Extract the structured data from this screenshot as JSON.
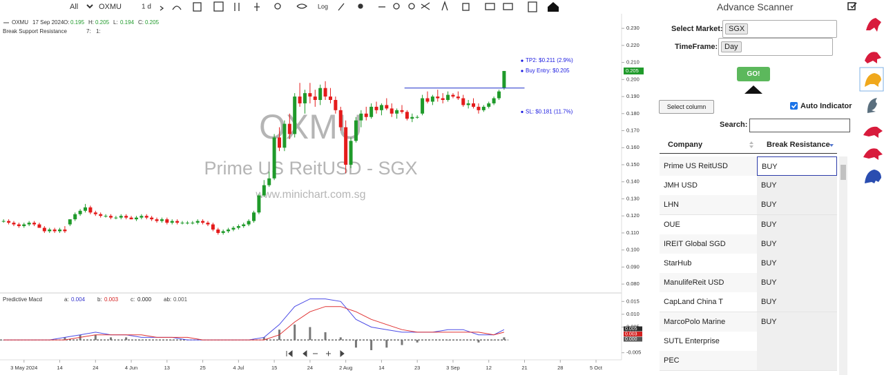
{
  "toolbar": {
    "range": "All",
    "symbol": "OXMU",
    "interval": "1 d",
    "scale": "Log"
  },
  "chart_data": [
    {
      "type": "candlestick",
      "symbol": "OXMU",
      "date": "17 Sep 2024",
      "ohlc_labels": [
        "O:",
        "H:",
        "L:",
        "C:"
      ],
      "indicator": "Break Support Resistance",
      "indicator_params": [
        "7:",
        "1:"
      ],
      "watermark": [
        "OXMU",
        "Prime US ReitUSD - SGX",
        "www.minichart.com.sg"
      ],
      "up_color": "#1f9a2a",
      "down_color": "#e41b1b",
      "xlim": [
        -0.7,
        121
      ],
      "ylim": [
        0.076,
        0.2345
      ],
      "ohlc": [
        [
          0.117,
          0.118,
          0.116,
          0.117
        ],
        [
          0.117,
          0.118,
          0.115,
          0.116
        ],
        [
          0.116,
          0.117,
          0.114,
          0.115
        ],
        [
          0.115,
          0.116,
          0.113,
          0.114
        ],
        [
          0.114,
          0.116,
          0.113,
          0.115
        ],
        [
          0.115,
          0.117,
          0.114,
          0.116
        ],
        [
          0.116,
          0.117,
          0.114,
          0.115
        ],
        [
          0.115,
          0.116,
          0.113,
          0.113
        ],
        [
          0.113,
          0.114,
          0.11,
          0.111
        ],
        [
          0.111,
          0.113,
          0.11,
          0.112
        ],
        [
          0.112,
          0.113,
          0.11,
          0.111
        ],
        [
          0.111,
          0.113,
          0.11,
          0.112
        ],
        [
          0.112,
          0.114,
          0.11,
          0.111
        ],
        [
          0.115,
          0.118,
          0.114,
          0.118
        ],
        [
          0.118,
          0.122,
          0.117,
          0.121
        ],
        [
          0.121,
          0.124,
          0.12,
          0.123
        ],
        [
          0.123,
          0.127,
          0.122,
          0.125
        ],
        [
          0.125,
          0.126,
          0.121,
          0.122
        ],
        [
          0.122,
          0.123,
          0.12,
          0.121
        ],
        [
          0.121,
          0.122,
          0.119,
          0.12
        ],
        [
          0.12,
          0.121,
          0.119,
          0.12
        ],
        [
          0.12,
          0.121,
          0.118,
          0.119
        ],
        [
          0.119,
          0.12,
          0.118,
          0.119
        ],
        [
          0.119,
          0.121,
          0.118,
          0.12
        ],
        [
          0.12,
          0.121,
          0.118,
          0.119
        ],
        [
          0.119,
          0.12,
          0.118,
          0.118
        ],
        [
          0.118,
          0.12,
          0.117,
          0.119
        ],
        [
          0.119,
          0.121,
          0.118,
          0.12
        ],
        [
          0.12,
          0.121,
          0.118,
          0.119
        ],
        [
          0.119,
          0.12,
          0.117,
          0.118
        ],
        [
          0.118,
          0.119,
          0.116,
          0.117
        ],
        [
          0.117,
          0.119,
          0.116,
          0.118
        ],
        [
          0.118,
          0.119,
          0.115,
          0.116
        ],
        [
          0.116,
          0.118,
          0.115,
          0.117
        ],
        [
          0.117,
          0.118,
          0.115,
          0.116
        ],
        [
          0.116,
          0.117,
          0.115,
          0.116
        ],
        [
          0.116,
          0.117,
          0.115,
          0.116
        ],
        [
          0.116,
          0.117,
          0.115,
          0.116
        ],
        [
          0.116,
          0.118,
          0.115,
          0.117
        ],
        [
          0.117,
          0.118,
          0.115,
          0.116
        ],
        [
          0.116,
          0.117,
          0.114,
          0.115
        ],
        [
          0.115,
          0.116,
          0.111,
          0.112
        ],
        [
          0.112,
          0.113,
          0.109,
          0.11
        ],
        [
          0.11,
          0.112,
          0.109,
          0.111
        ],
        [
          0.111,
          0.113,
          0.11,
          0.112
        ],
        [
          0.112,
          0.114,
          0.111,
          0.113
        ],
        [
          0.113,
          0.115,
          0.112,
          0.114
        ],
        [
          0.114,
          0.116,
          0.113,
          0.115
        ],
        [
          0.115,
          0.118,
          0.114,
          0.117
        ],
        [
          0.117,
          0.123,
          0.116,
          0.122
        ],
        [
          0.122,
          0.133,
          0.121,
          0.132
        ],
        [
          0.132,
          0.141,
          0.131,
          0.138
        ],
        [
          0.138,
          0.146,
          0.137,
          0.142
        ],
        [
          0.142,
          0.168,
          0.141,
          0.166
        ],
        [
          0.166,
          0.172,
          0.158,
          0.16
        ],
        [
          0.16,
          0.176,
          0.158,
          0.174
        ],
        [
          0.174,
          0.18,
          0.165,
          0.168
        ],
        [
          0.168,
          0.192,
          0.166,
          0.19
        ],
        [
          0.19,
          0.198,
          0.184,
          0.186
        ],
        [
          0.186,
          0.194,
          0.18,
          0.192
        ],
        [
          0.192,
          0.198,
          0.186,
          0.19
        ],
        [
          0.19,
          0.194,
          0.184,
          0.188
        ],
        [
          0.188,
          0.197,
          0.185,
          0.195
        ],
        [
          0.195,
          0.199,
          0.188,
          0.19
        ],
        [
          0.19,
          0.195,
          0.186,
          0.188
        ],
        [
          0.188,
          0.19,
          0.18,
          0.182
        ],
        [
          0.182,
          0.184,
          0.17,
          0.172
        ],
        [
          0.172,
          0.176,
          0.145,
          0.15
        ],
        [
          0.15,
          0.166,
          0.148,
          0.164
        ],
        [
          0.164,
          0.178,
          0.163,
          0.176
        ],
        [
          0.176,
          0.182,
          0.172,
          0.18
        ],
        [
          0.18,
          0.184,
          0.176,
          0.178
        ],
        [
          0.178,
          0.186,
          0.177,
          0.184
        ],
        [
          0.184,
          0.187,
          0.18,
          0.182
        ],
        [
          0.182,
          0.186,
          0.179,
          0.185
        ],
        [
          0.185,
          0.189,
          0.182,
          0.183
        ],
        [
          0.183,
          0.186,
          0.178,
          0.18
        ],
        [
          0.18,
          0.183,
          0.177,
          0.182
        ],
        [
          0.182,
          0.185,
          0.18,
          0.181
        ],
        [
          0.181,
          0.182,
          0.176,
          0.177
        ],
        [
          0.177,
          0.18,
          0.175,
          0.178
        ],
        [
          0.178,
          0.179,
          0.177,
          0.178
        ],
        [
          0.18,
          0.191,
          0.179,
          0.189
        ],
        [
          0.189,
          0.193,
          0.186,
          0.187
        ],
        [
          0.187,
          0.191,
          0.185,
          0.19
        ],
        [
          0.19,
          0.194,
          0.187,
          0.189
        ],
        [
          0.189,
          0.192,
          0.186,
          0.188
        ],
        [
          0.188,
          0.193,
          0.187,
          0.191
        ],
        [
          0.191,
          0.192,
          0.189,
          0.19
        ],
        [
          0.19,
          0.193,
          0.188,
          0.189
        ],
        [
          0.189,
          0.191,
          0.184,
          0.185
        ],
        [
          0.185,
          0.188,
          0.183,
          0.186
        ],
        [
          0.186,
          0.189,
          0.183,
          0.184
        ],
        [
          0.184,
          0.186,
          0.18,
          0.182
        ],
        [
          0.182,
          0.185,
          0.181,
          0.184
        ],
        [
          0.184,
          0.187,
          0.183,
          0.186
        ],
        [
          0.186,
          0.19,
          0.185,
          0.189
        ],
        [
          0.189,
          0.194,
          0.188,
          0.193
        ],
        [
          0.195,
          0.205,
          0.194,
          0.205
        ]
      ],
      "resistance": {
        "value": 0.195,
        "x": [
          78.5,
          102
        ],
        "color": "#3545d0"
      },
      "annotations": [
        {
          "label": "TP2: $0.211 (2.9%)",
          "value": 0.211
        },
        {
          "label": "Buy Entry: $0.205",
          "value": 0.205
        },
        {
          "label": "SL: $0.181 (11.7%)",
          "value": 0.181
        }
      ],
      "annotation_color": "#1a1ae0",
      "yticks": [
        {
          "value": 0.23,
          "label": "0.230"
        },
        {
          "value": 0.22,
          "label": "0.220"
        },
        {
          "value": 0.21,
          "label": "0.210"
        },
        {
          "value": 0.2,
          "label": "0.200"
        },
        {
          "value": 0.19,
          "label": "0.190"
        },
        {
          "value": 0.18,
          "label": "0.180"
        },
        {
          "value": 0.17,
          "label": "0.170"
        },
        {
          "value": 0.16,
          "label": "0.160"
        },
        {
          "value": 0.15,
          "label": "0.150"
        },
        {
          "value": 0.14,
          "label": "0.140"
        },
        {
          "value": 0.13,
          "label": "0.130"
        },
        {
          "value": 0.12,
          "label": "0.120"
        },
        {
          "value": 0.11,
          "label": "0.110"
        },
        {
          "value": 0.1,
          "label": "0.100"
        },
        {
          "value": 0.09,
          "label": "0.090"
        },
        {
          "value": 0.08,
          "label": "0.080"
        }
      ],
      "xticks": [
        {
          "value": 4,
          "label": "3 May 2024"
        },
        {
          "value": 11,
          "label": "14"
        },
        {
          "value": 18,
          "label": "24"
        },
        {
          "value": 25,
          "label": "4 Jun"
        },
        {
          "value": 32,
          "label": "13"
        },
        {
          "value": 39,
          "label": "25"
        },
        {
          "value": 46,
          "label": "4 Jul"
        },
        {
          "value": 53,
          "label": "15"
        },
        {
          "value": 60,
          "label": "24"
        },
        {
          "value": 67,
          "label": "2 Aug"
        },
        {
          "value": 74,
          "label": "14"
        },
        {
          "value": 81,
          "label": "23"
        },
        {
          "value": 88,
          "label": "3 Sep"
        },
        {
          "value": 95,
          "label": "12"
        },
        {
          "value": 102,
          "label": "21"
        },
        {
          "value": 109,
          "label": "28"
        },
        {
          "value": 116,
          "label": "5 Oct"
        }
      ]
    },
    {
      "type": "macd",
      "title": "Predictive Macd",
      "legend": [
        {
          "key": "a:",
          "value": "0.004",
          "color": "#3333cc"
        },
        {
          "key": "b:",
          "value": "0.003",
          "color": "#d42020"
        },
        {
          "key": "c:",
          "value": "0.000",
          "color": "#222222"
        },
        {
          "key": "ab:",
          "value": "0.001",
          "color": "#555555"
        }
      ],
      "xlim": [
        -0.7,
        121
      ],
      "ylim": [
        -0.0075,
        0.0175
      ],
      "x": [
        0,
        3,
        6,
        9,
        12,
        15,
        18,
        21,
        24,
        27,
        30,
        33,
        36,
        39,
        42,
        45,
        48,
        51,
        54,
        57,
        60,
        63,
        66,
        69,
        72,
        75,
        78,
        81,
        84,
        87,
        90,
        93,
        96,
        98
      ],
      "series": [
        {
          "color": "#4a4ae6",
          "values": [
            0,
            0,
            0,
            0,
            0.001,
            0.002,
            0.003,
            0.002,
            0.002,
            0.001,
            0.001,
            0.001,
            0,
            0,
            0,
            0,
            0,
            0.001,
            0.006,
            0.013,
            0.016,
            0.016,
            0.015,
            0.008,
            0.005,
            0.004,
            0.003,
            0.003,
            0.003,
            0.004,
            0.004,
            0.002,
            0.002,
            0.004
          ]
        },
        {
          "color": "#e03030",
          "values": [
            0,
            0,
            0,
            0,
            0,
            0.001,
            0.002,
            0.002,
            0.002,
            0.002,
            0.001,
            0.001,
            0.001,
            0,
            0,
            0,
            0,
            0,
            0.002,
            0.007,
            0.011,
            0.013,
            0.013,
            0.011,
            0.008,
            0.006,
            0.004,
            0.003,
            0.003,
            0.003,
            0.003,
            0.003,
            0.002,
            0.003
          ]
        }
      ],
      "histogram": {
        "color": "#777777",
        "values": [
          0,
          0,
          0,
          0,
          0.001,
          0.002,
          0.002,
          0.001,
          0.001,
          0,
          0,
          0,
          0,
          0,
          0,
          0,
          0,
          0.001,
          0.004,
          0.006,
          0.005,
          0.003,
          0.001,
          -0.003,
          -0.004,
          -0.003,
          -0.002,
          -0.001,
          0,
          0,
          0,
          -0.001,
          0,
          0.001
        ]
      },
      "end_labels": [
        {
          "label": "0.005",
          "color": "#2b2b2b"
        },
        {
          "label": "0.003",
          "color": "#d42020"
        },
        {
          "label": "0.000",
          "color": "#555555"
        }
      ],
      "yticks": [
        0.015,
        {
          "value": 0.01,
          "label": "0.010"
        },
        0.005,
        -0.005
      ]
    }
  ],
  "scanner": {
    "title": "Advance Scanner",
    "market_label": "Select Market:",
    "market": "SGX",
    "timeframe_label": "TimeFrame:",
    "timeframe": "Day",
    "go": "GO!",
    "select_column": "Select column",
    "auto_indicator": "Auto Indicator",
    "search_label": "Search:",
    "table": {
      "columns": [
        "Company",
        "Break Resistance"
      ],
      "rows": [
        [
          "Prime US ReitUSD",
          "BUY"
        ],
        [
          "JMH USD",
          "BUY"
        ],
        [
          "LHN",
          "BUY"
        ],
        [
          "OUE",
          "BUY"
        ],
        [
          "IREIT Global SGD",
          "BUY"
        ],
        [
          "StarHub",
          "BUY"
        ],
        [
          "ManulifeReit USD",
          "BUY"
        ],
        [
          "CapLand China T",
          "BUY"
        ],
        [
          "MarcoPolo Marine",
          "BUY"
        ],
        [
          "SUTL Enterprise",
          null
        ],
        [
          "PEC",
          null
        ]
      ]
    }
  }
}
